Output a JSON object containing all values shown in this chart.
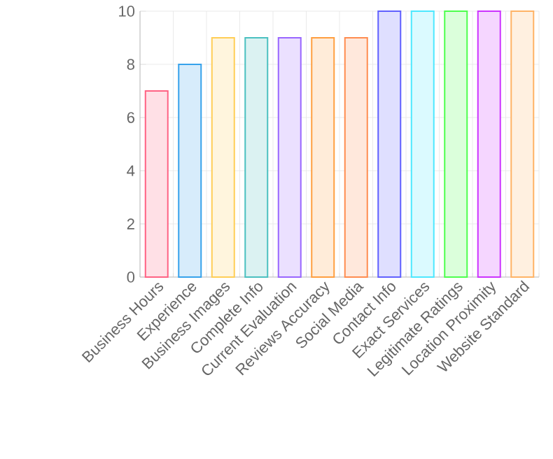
{
  "chart_data": {
    "type": "bar",
    "categories": [
      "Business Hours",
      "Experience",
      "Business Images",
      "Complete Info",
      "Current Evaluation",
      "Reviews Accuracy",
      "Social Media",
      "Contact Info",
      "Exact Services",
      "Legitimate Ratings",
      "Location Proximity",
      "Website Standard"
    ],
    "values": [
      7,
      8,
      9,
      9,
      9,
      9,
      9,
      10,
      10,
      10,
      10,
      10
    ],
    "colors": [
      "#ff6384",
      "#36a2eb",
      "#ffce56",
      "#4bc0c0",
      "#9966ff",
      "#ff9f40",
      "#ff8c50",
      "#6060ff",
      "#4de8ff",
      "#4dff4d",
      "#cc33ff",
      "#ffb366"
    ],
    "ylim": [
      0,
      10
    ],
    "yticks": [
      0,
      2,
      4,
      6,
      8,
      10
    ],
    "grid": true
  }
}
